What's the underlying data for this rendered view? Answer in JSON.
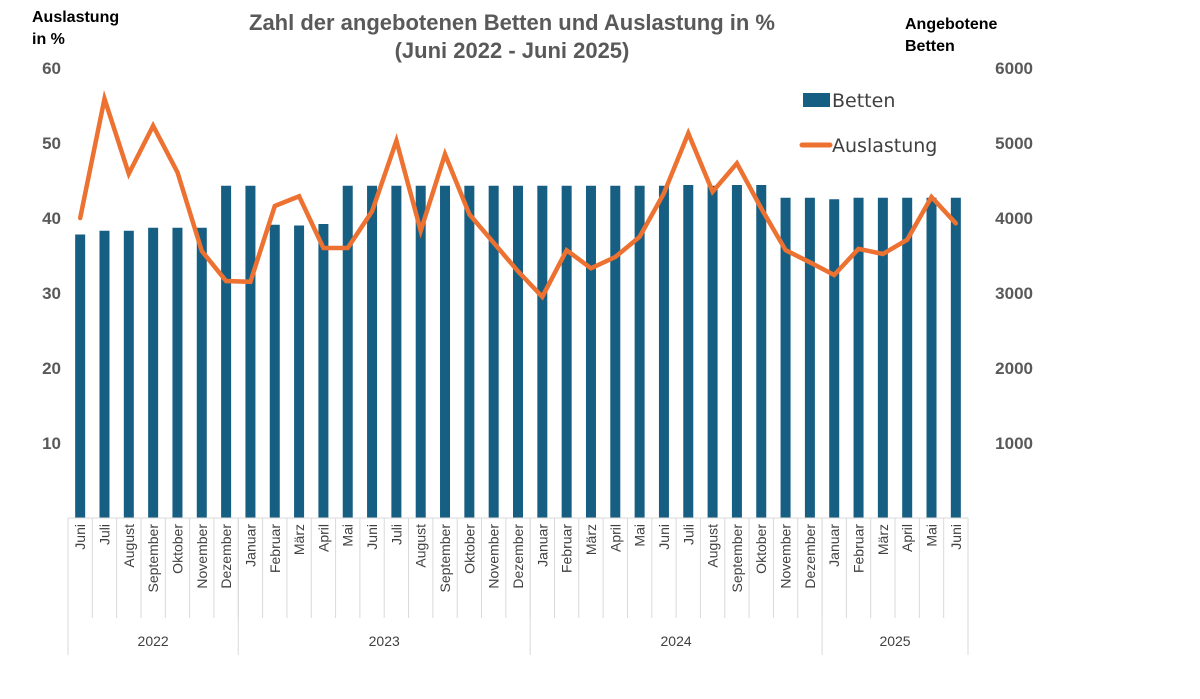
{
  "chart_data": {
    "type": "bar+line",
    "title_line1": "Zahl der angebotenen Betten und Auslastung in %",
    "title_line2": "(Juni 2022 - Juni 2025)",
    "ylabel_left_line1": "Auslastung",
    "ylabel_left_line2": "in %",
    "ylabel_right_line1": "Angebotene",
    "ylabel_right_line2": "Betten",
    "ylim_left": [
      0,
      60
    ],
    "ylim_right": [
      0,
      6000
    ],
    "yticks_left": [
      "10",
      "20",
      "30",
      "40",
      "50",
      "60"
    ],
    "yticks_right": [
      "1000",
      "2000",
      "3000",
      "4000",
      "5000",
      "6000"
    ],
    "grid": false,
    "legend_position": "top-right",
    "colors": {
      "bars": "#165e82",
      "line": "#ed7130"
    },
    "categories": [
      "Juni",
      "Juli",
      "August",
      "September",
      "Oktober",
      "November",
      "Dezember",
      "Januar",
      "Februar",
      "März",
      "April",
      "Mai",
      "Juni",
      "Juli",
      "August",
      "September",
      "Oktober",
      "November",
      "Dezember",
      "Januar",
      "Februar",
      "März",
      "April",
      "Mai",
      "Juni",
      "Juli",
      "August",
      "September",
      "Oktober",
      "November",
      "Dezember",
      "Januar",
      "Februar",
      "März",
      "April",
      "Mai",
      "Juni"
    ],
    "years": [
      {
        "label": "2022",
        "count": 7
      },
      {
        "label": "2023",
        "count": 12
      },
      {
        "label": "2024",
        "count": 12
      },
      {
        "label": "2025",
        "count": 6
      }
    ],
    "series": [
      {
        "name": "Betten",
        "axis": "right",
        "kind": "bar",
        "values": [
          3780,
          3830,
          3830,
          3870,
          3870,
          3870,
          4430,
          4430,
          3910,
          3900,
          3920,
          4430,
          4430,
          4430,
          4430,
          4430,
          4430,
          4430,
          4430,
          4430,
          4430,
          4430,
          4430,
          4430,
          4430,
          4440,
          4430,
          4440,
          4440,
          4270,
          4270,
          4250,
          4270,
          4270,
          4270,
          4270,
          4270
        ]
      },
      {
        "name": "Auslastung",
        "axis": "left",
        "kind": "line",
        "values": [
          40.0,
          55.9,
          45.9,
          52.3,
          46.1,
          35.6,
          31.6,
          31.5,
          41.6,
          42.9,
          36.0,
          36.0,
          40.9,
          50.3,
          38.3,
          48.5,
          40.5,
          36.7,
          32.9,
          29.5,
          35.7,
          33.3,
          34.8,
          37.5,
          43.3,
          51.3,
          43.5,
          47.3,
          41.3,
          35.7,
          34.1,
          32.4,
          35.9,
          35.2,
          37.1,
          42.8,
          39.3
        ]
      }
    ]
  }
}
